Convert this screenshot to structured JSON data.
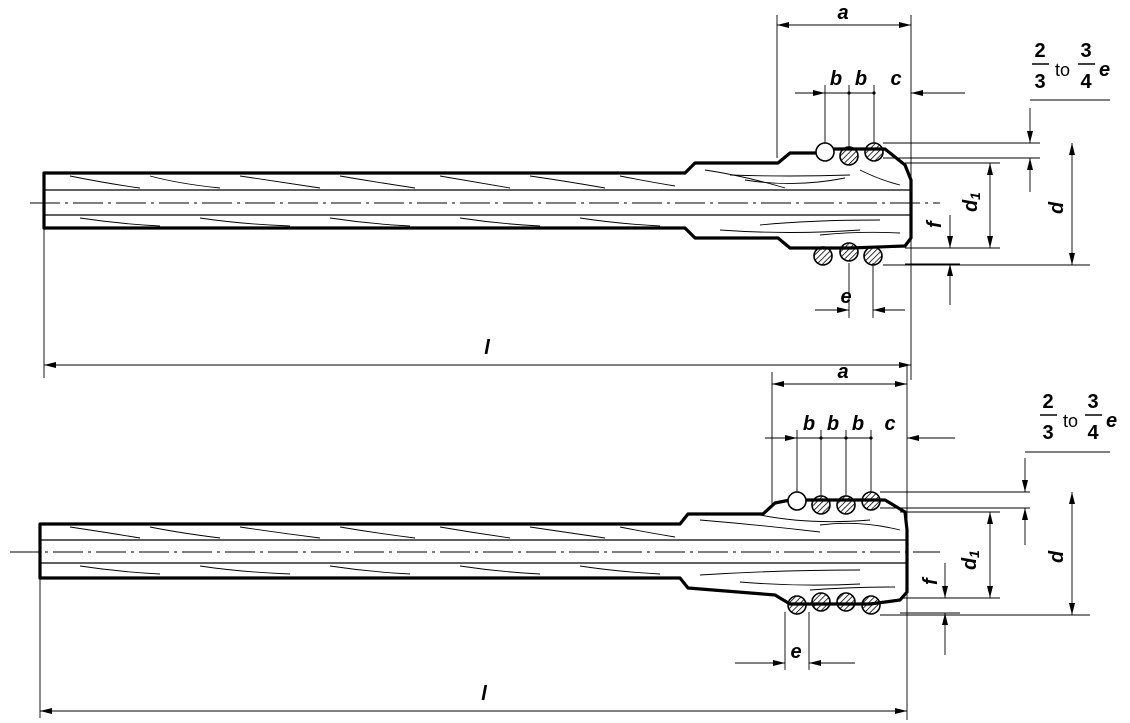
{
  "labels": {
    "a": "a",
    "b": "b",
    "c": "c",
    "d": "d",
    "d1": "d",
    "d1_sub": "1",
    "e": "e",
    "f": "f",
    "l": "l",
    "frac_num_1": "2",
    "frac_den_1": "3",
    "frac_to": "to",
    "frac_num_2": "3",
    "frac_den_2": "4",
    "frac_e": "e"
  },
  "variants": [
    {
      "name": "top",
      "coils": 3
    },
    {
      "name": "bottom",
      "coils": 4
    }
  ]
}
